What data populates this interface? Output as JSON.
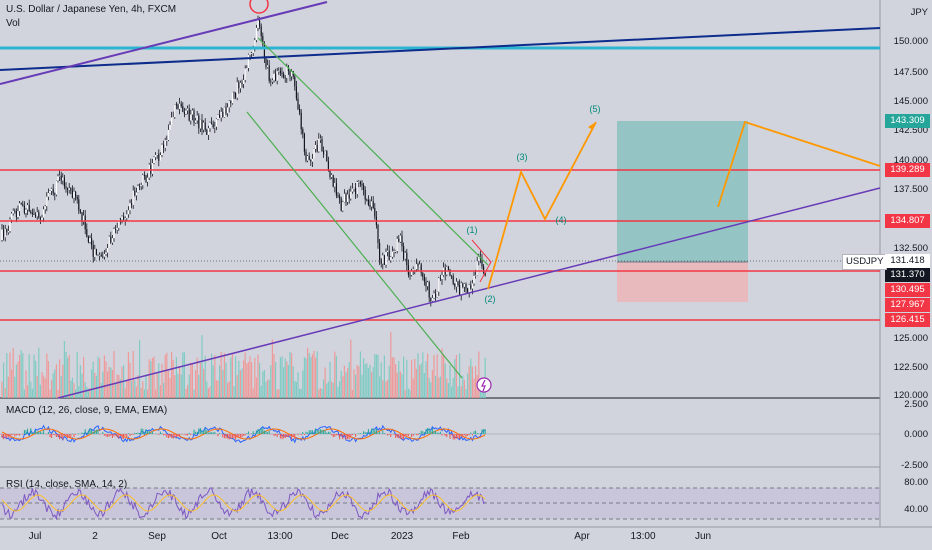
{
  "header": {
    "title": "U.S. Dollar / Japanese Yen, 4h, FXCM",
    "volume_label": "Vol",
    "macd_label": "MACD (12, 26, close, 9, EMA, EMA)",
    "rsi_label": "RSI (14, close, SMA, 14, 2)"
  },
  "price_axis": {
    "currency": "JPY",
    "ticks": [
      "150.000",
      "147.500",
      "145.000",
      "142.500",
      "140.000",
      "137.500",
      "132.500",
      "125.000",
      "122.500",
      "120.000"
    ]
  },
  "macd_axis": {
    "ticks": [
      "2.500",
      "0.000",
      "-2.500"
    ]
  },
  "rsi_axis": {
    "ticks": [
      "80.00",
      "40.00"
    ]
  },
  "price_tags": [
    {
      "label": "143.309",
      "color": "#26a69a"
    },
    {
      "label": "139.289",
      "color": "#f23645"
    },
    {
      "label": "134.807",
      "color": "#f23645"
    },
    {
      "label": "131.370",
      "color": "#131722"
    },
    {
      "label": "130.495",
      "color": "#f23645"
    },
    {
      "label": "127.967",
      "color": "#f23645"
    },
    {
      "label": "126.415",
      "color": "#f23645"
    }
  ],
  "symbol_tag": {
    "symbol": "USDJPY",
    "price": "131.418"
  },
  "time_axis": [
    "Jul",
    "2",
    "Sep",
    "Oct",
    "13:00",
    "Dec",
    "2023",
    "Feb",
    "Apr",
    "13:00",
    "Jun"
  ],
  "wave_labels": [
    "(1)",
    "(2)",
    "(3)",
    "(4)",
    "(5)"
  ],
  "colors": {
    "background": "#d1d4dc",
    "horizontal_lines": "#f23645",
    "channel": "#4caf50",
    "trendline_purple": "#673ab7",
    "trendline_navy": "#0d2c8c",
    "cyan_line": "#2bb5d0",
    "projection": "#ff9800",
    "target_zone": "#26a69a",
    "stop_zone": "#f7a9a9"
  }
}
